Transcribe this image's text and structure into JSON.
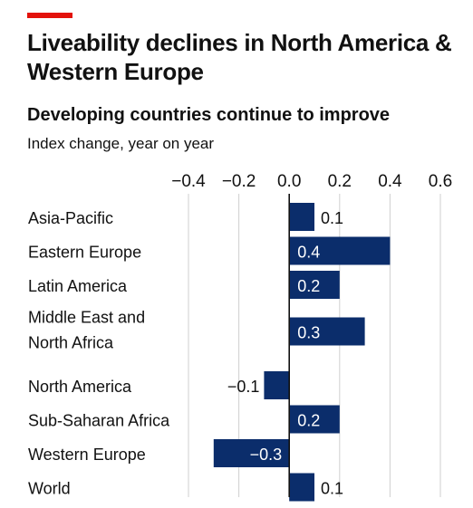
{
  "header": {
    "title": "Liveability declines in North America & Western Europe",
    "subtitle": "Developing countries continue to improve",
    "unit_label": "Index change, year on year"
  },
  "colors": {
    "accent": "#e3120b",
    "bar": "#0b2d6b",
    "grid": "#cfcfcf",
    "axis": "#111111",
    "label_inside": "#ffffff",
    "label_outside": "#111111"
  },
  "chart_data": {
    "type": "bar",
    "orientation": "horizontal",
    "title": "Liveability declines in North America & Western Europe",
    "subtitle": "Developing countries continue to improve",
    "xlabel": "Index change, year on year",
    "xlim": [
      -0.4,
      0.6
    ],
    "xticks": [
      -0.4,
      -0.2,
      0.0,
      0.2,
      0.4,
      0.6
    ],
    "xtick_labels": [
      "−0.4",
      "−0.2",
      "0.0",
      "0.2",
      "0.4",
      "0.6"
    ],
    "categories": [
      [
        "Asia-Pacific"
      ],
      [
        "Eastern Europe"
      ],
      [
        "Latin America"
      ],
      [
        "Middle East and",
        "North Africa"
      ],
      [
        "North America"
      ],
      [
        "Sub-Saharan Africa"
      ],
      [
        "Western Europe"
      ],
      [
        "World"
      ]
    ],
    "values": [
      0.1,
      0.4,
      0.2,
      0.3,
      -0.1,
      0.2,
      -0.3,
      0.1
    ],
    "value_labels": [
      "0.1",
      "0.4",
      "0.2",
      "0.3",
      "−0.1",
      "0.2",
      "−0.3",
      "0.1"
    ],
    "grid": true
  }
}
